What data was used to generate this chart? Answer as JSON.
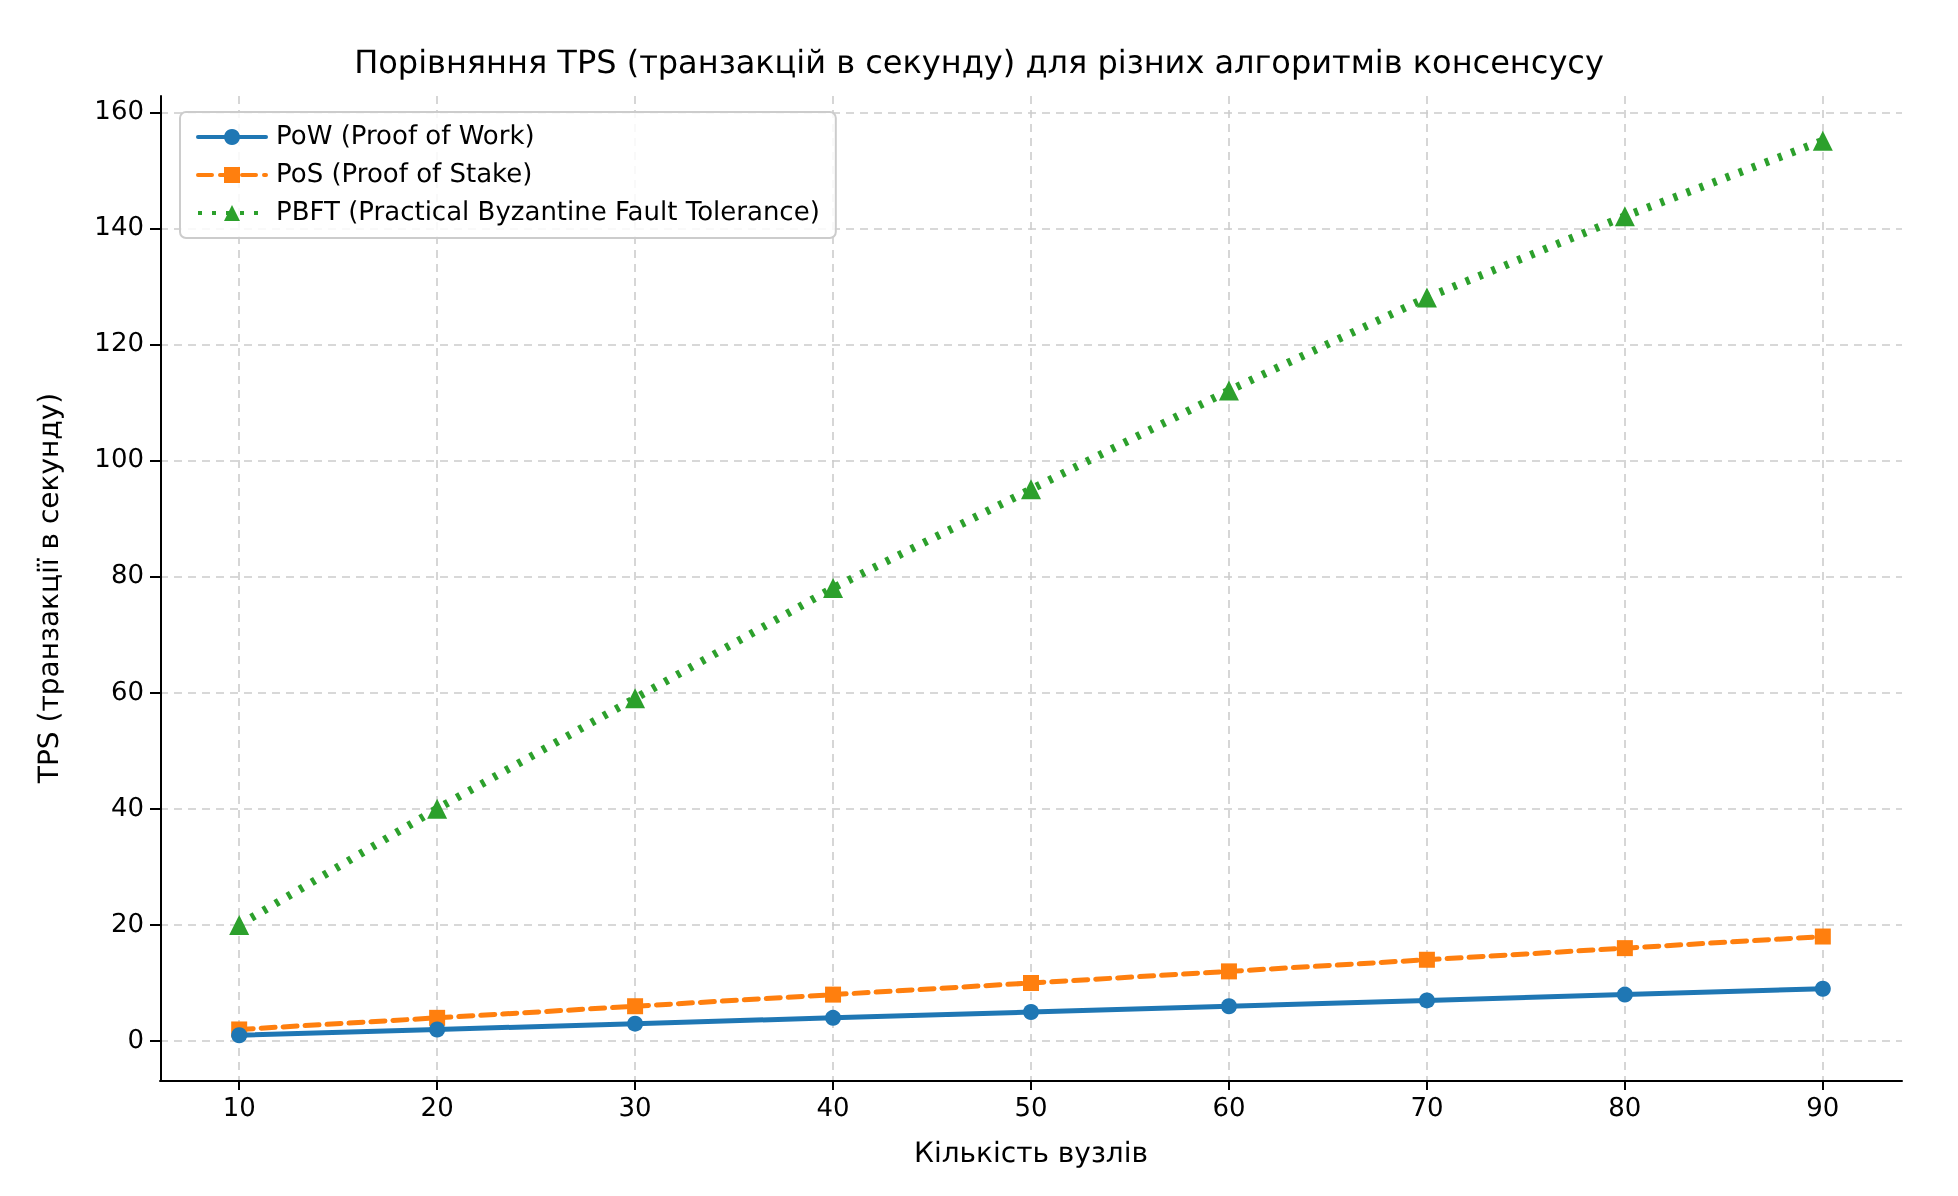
{
  "chart_data": {
    "type": "line",
    "title": "Порівняння TPS (транзакцій в секунду) для різних алгоритмів консенсусу",
    "xlabel": "Кількість вузлів",
    "ylabel": "TPS (транзакції в секунду)",
    "x": [
      10,
      20,
      30,
      40,
      50,
      60,
      70,
      80,
      90
    ],
    "series": [
      {
        "name": "PoW (Proof of Work)",
        "color": "#1f77b4",
        "marker": "circle",
        "line_style": "solid",
        "values": [
          1,
          2,
          3,
          4,
          5,
          6,
          7,
          8,
          9
        ]
      },
      {
        "name": "PoS (Proof of Stake)",
        "color": "#ff7f0e",
        "marker": "square",
        "line_style": "dashed",
        "values": [
          2,
          4,
          6,
          8,
          10,
          12,
          14,
          16,
          18
        ]
      },
      {
        "name": "PBFT (Practical Byzantine Fault Tolerance)",
        "color": "#2ca02c",
        "marker": "triangle",
        "line_style": "dotted",
        "values": [
          20,
          40,
          59,
          78,
          95,
          112,
          128,
          142,
          155
        ]
      }
    ],
    "xlim": [
      6,
      94
    ],
    "xticks": [
      10,
      20,
      30,
      40,
      50,
      60,
      70,
      80,
      90
    ],
    "ylim": [
      -6.7,
      162.7
    ],
    "yticks": [
      0,
      20,
      40,
      60,
      80,
      100,
      120,
      140,
      160
    ],
    "grid": true,
    "legend": "top left"
  }
}
